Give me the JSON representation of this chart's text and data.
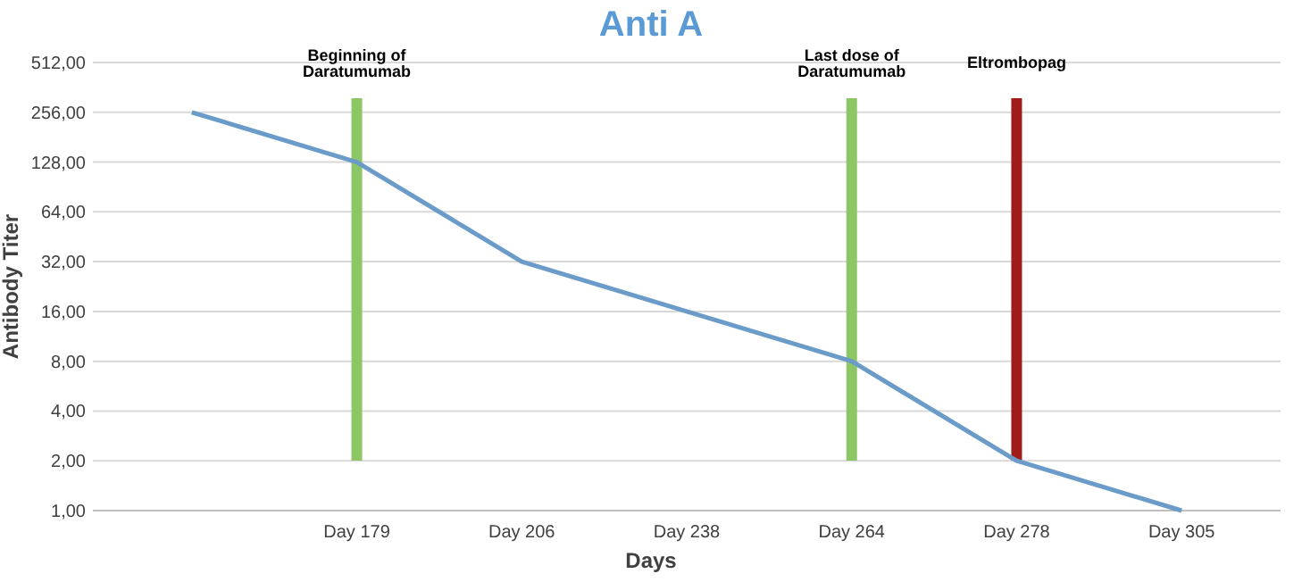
{
  "chart_data": {
    "type": "line",
    "title": "Anti A",
    "xlabel": "Days",
    "ylabel": "Antibody Titer",
    "categories": [
      null,
      "Day 179",
      "Day 206",
      "Day 238",
      "Day 264",
      "Day 278",
      "Day 305"
    ],
    "series": [
      {
        "color": "#6a9bc9",
        "values": [
          256,
          128,
          32,
          16,
          8,
          2,
          1
        ]
      }
    ],
    "log": "y",
    "ylim": [
      1,
      512
    ],
    "yticks": [
      {
        "value": 1,
        "label": "1,00"
      },
      {
        "value": 2,
        "label": "2,00"
      },
      {
        "value": 4,
        "label": "4,00"
      },
      {
        "value": 8,
        "label": "8,00"
      },
      {
        "value": 16,
        "label": "16,00"
      },
      {
        "value": 32,
        "label": "32,00"
      },
      {
        "value": 64,
        "label": "64,00"
      },
      {
        "value": 128,
        "label": "128,00"
      },
      {
        "value": 256,
        "label": "256,00"
      },
      {
        "value": 512,
        "label": "512,00"
      }
    ],
    "grid": "y",
    "ref_lines": [
      {
        "axis": "x",
        "value": "Day 179",
        "label": "Beginning of\nDaratumumab",
        "color": "#8cc665"
      },
      {
        "axis": "x",
        "value": "Day 264",
        "label": "Last dose of\nDaratumumab",
        "color": "#8cc665"
      },
      {
        "axis": "x",
        "value": "Day 278",
        "label": "Eltrombopag",
        "color": "#a01c1c"
      }
    ]
  }
}
